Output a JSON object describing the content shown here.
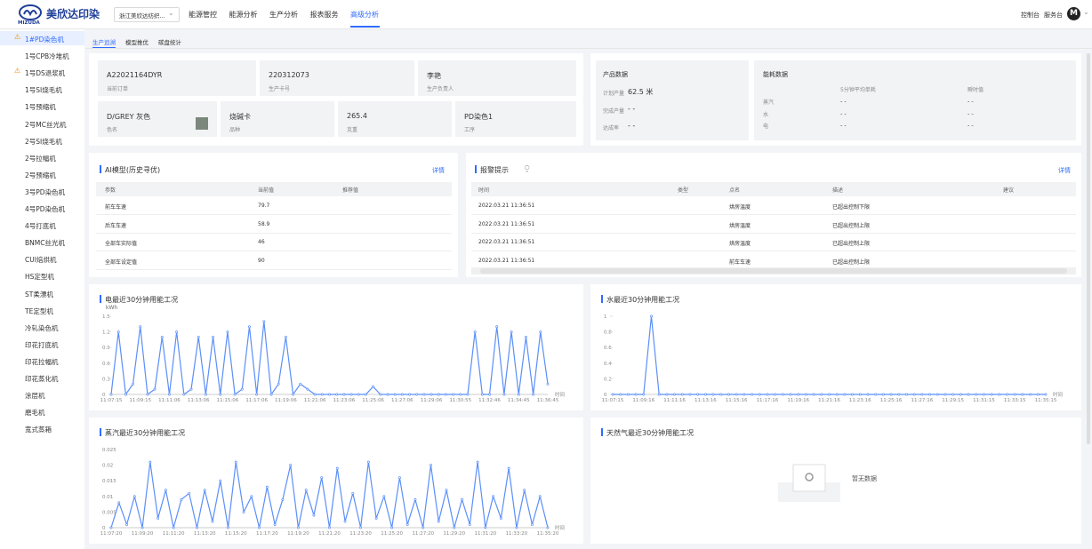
{
  "header": {
    "logo": "美欣达印染",
    "logo_sub": "MIZUDA",
    "company_select": "浙江美欣达纺织...",
    "nav": [
      "能源管控",
      "能源分析",
      "生产分析",
      "报表服务",
      "高级分析"
    ],
    "right_links": [
      "控制台",
      "服务台"
    ],
    "avatar": "M"
  },
  "sidebar": {
    "items": [
      "1#PD染色机",
      "1号CPB冷堆机",
      "1号DS退浆机",
      "1号SI烧毛机",
      "1号预缩机",
      "2号MC丝光机",
      "2号SI烧毛机",
      "2号拉幅机",
      "2号预缩机",
      "3号PD染色机",
      "4号PD染色机",
      "4号打底机",
      "BNMC丝光机",
      "CUI焙烘机",
      "HS定型机",
      "ST柔漂机",
      "TE定型机",
      "冷轧染色机",
      "印花打底机",
      "印花拉幅机",
      "印花蒸化机",
      "涂层机",
      "磨毛机",
      "宽式蒸箱"
    ]
  },
  "tabs": [
    "生产追溯",
    "模型推优",
    "碳盘统计"
  ],
  "info_cards": [
    {
      "value": "A22021164DYR",
      "label": "当前订单"
    },
    {
      "value": "220312073",
      "label": "生产卡号"
    },
    {
      "value": "李艳",
      "label": "生产负责人"
    },
    {
      "value": "D/GREY 灰色",
      "label": "色名"
    },
    {
      "value": "烧碱卡",
      "label": "品种"
    },
    {
      "value": "265.4",
      "label": "克重"
    },
    {
      "value": "PD染色1",
      "label": "工序"
    }
  ],
  "production": {
    "title": "产品数据",
    "rows": [
      {
        "label": "计划产量",
        "value": "62.5 米"
      },
      {
        "label": "完成产量",
        "value": "- -"
      },
      {
        "label": "达成率",
        "value": "- -"
      }
    ]
  },
  "energy": {
    "title": "能耗数据",
    "columns": [
      "5分钟平均单耗",
      "瞬时值"
    ],
    "rows": [
      {
        "label": "蒸汽",
        "cells": [
          "- -",
          "- -"
        ]
      },
      {
        "label": "水",
        "cells": [
          "- -",
          "- -"
        ]
      },
      {
        "label": "电",
        "cells": [
          "- -",
          "- -"
        ]
      }
    ]
  },
  "ai_model": {
    "title": "AI模型(历史寻优)",
    "link": "详情",
    "columns": [
      "参数",
      "当前值",
      "推荐值"
    ],
    "rows": [
      [
        "前车车速",
        79.7
      ],
      [
        "后车车速",
        58.9
      ],
      [
        "全部车实际值",
        46
      ],
      [
        "全部车设定值",
        90
      ]
    ]
  },
  "alarms": {
    "title": "报警提示",
    "link": "详情",
    "columns": [
      "时间",
      "类型",
      "点名",
      "描述",
      "建议"
    ],
    "rows": [
      {
        "time": "2022.03.21 11:36:51",
        "point": "烘房温度",
        "desc": "已超出控制下限"
      },
      {
        "time": "2022.03.21 11:36:51",
        "point": "烘房温度",
        "desc": "已超出控制上限"
      },
      {
        "time": "2022.03.21 11:36:51",
        "point": "烘房温度",
        "desc": "已超出控制上限"
      },
      {
        "time": "2022.03.21 11:36:51",
        "point": "前车车速",
        "desc": "已超出控制上限"
      }
    ]
  },
  "chart_data": [
    {
      "type": "line",
      "title": "电最近30分钟用能工况",
      "unit": "kWh",
      "x_label": "时间",
      "categories": [
        "11:07:15",
        null,
        null,
        null,
        "11:09:15",
        null,
        null,
        null,
        "11:11:06",
        null,
        null,
        null,
        "11:13:06",
        null,
        null,
        null,
        "11:15:06",
        null,
        null,
        null,
        "11:17:06",
        null,
        null,
        null,
        "11:19:06",
        null,
        null,
        null,
        "11:21:06",
        null,
        null,
        null,
        "11:23:06",
        null,
        null,
        null,
        "11:25:06",
        null,
        null,
        null,
        "11:27:06",
        null,
        null,
        null,
        "11:29:06",
        null,
        null,
        null,
        "11:30:55",
        null,
        null,
        null,
        "11:32:46",
        null,
        null,
        null,
        "11:34:45",
        null,
        null,
        null,
        "11:36:45"
      ],
      "series": [
        {
          "color": "#5b8ff9",
          "values": [
            0,
            1.2,
            0,
            0.2,
            1.3,
            0,
            0.1,
            1.1,
            0,
            1.2,
            0,
            0.1,
            1.1,
            0,
            1.1,
            0,
            1.2,
            0,
            0.1,
            1.3,
            0,
            1.4,
            0,
            0.2,
            1.1,
            0,
            0.2,
            0.1,
            0,
            0,
            0,
            0,
            0,
            0,
            0,
            0,
            0.15,
            0,
            0,
            0,
            0,
            0,
            0,
            0,
            0,
            0,
            0,
            0,
            0,
            0,
            1.2,
            0,
            0,
            1.3,
            0,
            1.2,
            0,
            1.1,
            0,
            1.2,
            0.2
          ]
        }
      ],
      "ylim": [
        0,
        1.5
      ],
      "yticks": [
        0,
        0.3,
        0.6,
        0.9,
        1.2,
        1.5
      ]
    },
    {
      "type": "line",
      "title": "水最近30分钟用能工况",
      "x_label": "时间",
      "categories": [
        "11:07:15",
        null,
        null,
        null,
        "11:09:16",
        null,
        null,
        null,
        "11:11:16",
        null,
        null,
        null,
        "11:13:16",
        null,
        null,
        null,
        "11:15:16",
        null,
        null,
        null,
        "11:17:16",
        null,
        null,
        null,
        "11:19:16",
        null,
        null,
        null,
        "11:21:16",
        null,
        null,
        null,
        "11:23:16",
        null,
        null,
        null,
        "11:25:16",
        null,
        null,
        null,
        "11:27:16",
        null,
        null,
        null,
        "11:29:15",
        null,
        null,
        null,
        "11:31:15",
        null,
        null,
        null,
        "11:33:15",
        null,
        null,
        null,
        "11:35:15"
      ],
      "series": [
        {
          "color": "#5b8ff9",
          "values": [
            0,
            0,
            0,
            0,
            0,
            1,
            0,
            0,
            0,
            0,
            0,
            0,
            0,
            0,
            0,
            0,
            0,
            0,
            0,
            0,
            0,
            0,
            0,
            0,
            0,
            0,
            0,
            0,
            0,
            0,
            0,
            0,
            0,
            0,
            0,
            0,
            0,
            0,
            0,
            0,
            0,
            0,
            0,
            0,
            0,
            0,
            0,
            0,
            0,
            0,
            0,
            0,
            0,
            0,
            0,
            0,
            0
          ]
        }
      ],
      "ylim": [
        0,
        1
      ],
      "yticks": [
        0,
        0.2,
        0.4,
        0.6,
        0.8,
        1
      ]
    },
    {
      "type": "line",
      "title": "蒸汽最近30分钟用能工况",
      "x_label": "时间",
      "categories": [
        "11:07:20",
        null,
        null,
        null,
        "11:09:20",
        null,
        null,
        null,
        "11:11:20",
        null,
        null,
        null,
        "11:13:20",
        null,
        null,
        null,
        "11:15:20",
        null,
        null,
        null,
        "11:17:20",
        null,
        null,
        null,
        "11:19:20",
        null,
        null,
        null,
        "11:21:20",
        null,
        null,
        null,
        "11:23:20",
        null,
        null,
        null,
        "11:25:20",
        null,
        null,
        null,
        "11:27:20",
        null,
        null,
        null,
        "11:29:20",
        null,
        null,
        null,
        "11:31:20",
        null,
        null,
        null,
        "11:33:20",
        null,
        null,
        null,
        "11:35:20"
      ],
      "series": [
        {
          "color": "#5b8ff9",
          "values": [
            0,
            0.008,
            0.001,
            0.01,
            0,
            0.021,
            0.003,
            0.012,
            0,
            0.009,
            0.011,
            0,
            0.012,
            0.002,
            0.015,
            0,
            0.021,
            0.005,
            0.01,
            0,
            0.013,
            0.001,
            0.009,
            0.02,
            0,
            0.012,
            0.004,
            0.016,
            0,
            0.019,
            0.002,
            0.011,
            0,
            0.021,
            0.003,
            0.01,
            0,
            0.016,
            0.001,
            0.009,
            0,
            0.02,
            0.002,
            0.012,
            0,
            0.009,
            0.001,
            0.021,
            0,
            0.01,
            0.003,
            0.019,
            0,
            0.012,
            0.001,
            0.01,
            0
          ]
        }
      ],
      "ylim": [
        0,
        0.025
      ],
      "yticks": [
        0,
        0.005,
        0.01,
        0.015,
        0.02,
        0.025
      ]
    },
    {
      "type": "line",
      "title": "天然气最近30分钟用能工况",
      "no_data_text": "暂无数据"
    }
  ]
}
